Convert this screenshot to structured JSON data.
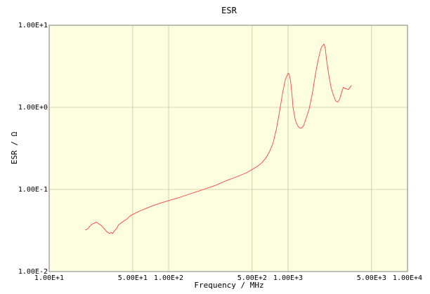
{
  "chart_data": {
    "type": "line",
    "title": "ESR",
    "xlabel": "Frequency / MHz",
    "ylabel": "ESR / Ω",
    "x_scale": "log",
    "y_scale": "log",
    "xlim": [
      10,
      10000
    ],
    "ylim": [
      0.01,
      10
    ],
    "grid": true,
    "colors": {
      "plot_background": "#fdfde0",
      "grid": "#c8c8a0",
      "axis": "#808080",
      "series": "#ff4040"
    },
    "x_ticks": [
      {
        "value": 10,
        "label": "1.00E+1"
      },
      {
        "value": 50,
        "label": "5.00E+1"
      },
      {
        "value": 100,
        "label": "1.00E+2"
      },
      {
        "value": 500,
        "label": "5.00E+2"
      },
      {
        "value": 1000,
        "label": "1.00E+3"
      },
      {
        "value": 5000,
        "label": "5.00E+3"
      },
      {
        "value": 10000,
        "label": "1.00E+4"
      }
    ],
    "y_ticks": [
      {
        "value": 0.01,
        "label": "1.00E-2"
      },
      {
        "value": 0.1,
        "label": "1.00E-1"
      },
      {
        "value": 1,
        "label": "1.00E+0"
      },
      {
        "value": 10,
        "label": "1.00E+1"
      }
    ],
    "series": [
      {
        "x": [
          20,
          21,
          22,
          23,
          24,
          25,
          26,
          27,
          28,
          29,
          30,
          32,
          33,
          34,
          35,
          37,
          38,
          40,
          42,
          45,
          48,
          52,
          58,
          65,
          75,
          85,
          100,
          120,
          150,
          180,
          200,
          250,
          300,
          350,
          400,
          450,
          500,
          550,
          600,
          650,
          700,
          750,
          800,
          850,
          900,
          950,
          1000,
          1020,
          1050,
          1080,
          1100,
          1150,
          1200,
          1250,
          1300,
          1350,
          1400,
          1500,
          1600,
          1700,
          1800,
          1900,
          2000,
          2050,
          2100,
          2200,
          2300,
          2400,
          2500,
          2600,
          2700,
          2800,
          2900,
          3000,
          3200,
          3400
        ],
        "y": [
          0.032,
          0.033,
          0.036,
          0.038,
          0.039,
          0.04,
          0.038,
          0.037,
          0.035,
          0.033,
          0.031,
          0.029,
          0.03,
          0.029,
          0.031,
          0.034,
          0.037,
          0.039,
          0.041,
          0.044,
          0.048,
          0.051,
          0.055,
          0.059,
          0.064,
          0.068,
          0.073,
          0.079,
          0.088,
          0.096,
          0.101,
          0.113,
          0.127,
          0.138,
          0.149,
          0.16,
          0.175,
          0.19,
          0.21,
          0.24,
          0.29,
          0.37,
          0.55,
          0.9,
          1.5,
          2.2,
          2.6,
          2.55,
          2.1,
          1.4,
          1.0,
          0.7,
          0.6,
          0.56,
          0.56,
          0.6,
          0.7,
          0.95,
          1.5,
          2.6,
          4.0,
          5.4,
          5.9,
          5.2,
          3.8,
          2.4,
          1.7,
          1.4,
          1.2,
          1.16,
          1.25,
          1.5,
          1.75,
          1.7,
          1.65,
          1.85
        ]
      }
    ]
  }
}
